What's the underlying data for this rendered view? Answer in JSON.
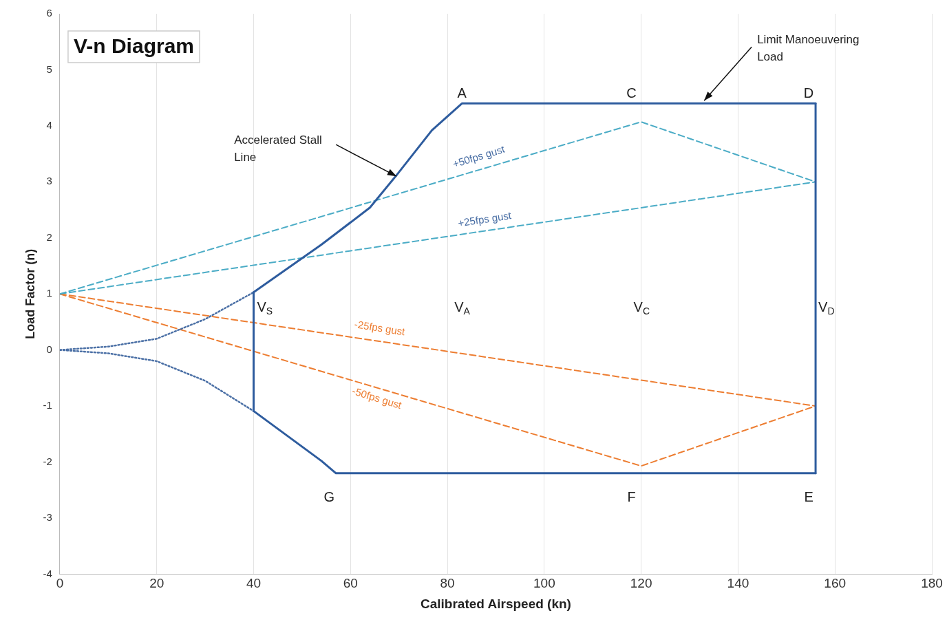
{
  "chart_data": {
    "type": "line",
    "title": "V-n Diagram",
    "xlabel": "Calibrated Airspeed (kn)",
    "ylabel": "Load Factor (n)",
    "xlim": [
      0,
      180
    ],
    "xticks": [
      0,
      20,
      40,
      60,
      80,
      100,
      120,
      140,
      160,
      180
    ],
    "ylim": [
      -4,
      6
    ],
    "yticks": [
      -4,
      -3,
      -2,
      -1,
      0,
      1,
      2,
      3,
      4,
      5,
      6
    ],
    "grid": "x",
    "legend": false,
    "marker": "none",
    "series": [
      {
        "color": "#2e5c9e",
        "line_style": "solid",
        "x": [
          40,
          54,
          64,
          69.7,
          76.8,
          83,
          156
        ],
        "values": [
          1.03,
          1.88,
          2.54,
          3.14,
          3.92,
          4.4,
          4.4
        ]
      },
      {
        "color": "#2e5c9e",
        "line_style": "solid",
        "x": [
          40,
          54,
          57,
          156
        ],
        "values": [
          -1.09,
          -1.98,
          -2.2,
          -2.2
        ]
      },
      {
        "color": "#2e5c9e",
        "line_style": "solid",
        "x": [
          156,
          156
        ],
        "values": [
          4.4,
          -2.2
        ]
      },
      {
        "color": "#2e5c9e",
        "line_style": "solid",
        "x": [
          40,
          40
        ],
        "values": [
          -1.09,
          1.03
        ]
      },
      {
        "color": "#4a6fa5",
        "line_style": "dotted",
        "x": [
          0,
          10,
          20,
          30,
          40
        ],
        "values": [
          0,
          0.06,
          0.2,
          0.55,
          1.03
        ]
      },
      {
        "color": "#4a6fa5",
        "line_style": "dotted",
        "x": [
          0,
          10,
          20,
          30,
          40
        ],
        "values": [
          0,
          -0.06,
          -0.2,
          -0.55,
          -1.09
        ]
      },
      {
        "color": "#4bacc6",
        "line_style": "dashed",
        "x": [
          0,
          120,
          156
        ],
        "values": [
          1,
          4.07,
          3
        ]
      },
      {
        "color": "#4bacc6",
        "line_style": "dashed",
        "x": [
          0,
          156
        ],
        "values": [
          1,
          3
        ]
      },
      {
        "color": "#ed7d31",
        "line_style": "dashed",
        "x": [
          0,
          156
        ],
        "values": [
          1,
          -1
        ]
      },
      {
        "color": "#ed7d31",
        "line_style": "dashed",
        "x": [
          0,
          120,
          156
        ],
        "values": [
          1,
          -2.07,
          -1
        ]
      }
    ],
    "annotations": [
      {
        "text": "A",
        "x": 83,
        "y": 4.4
      },
      "C",
      {
        "text": "D",
        "x": 156,
        "y": 4.4
      },
      {
        "text": "G",
        "x": 57,
        "y": -2.2
      },
      "F",
      {
        "text": "E",
        "x": 156,
        "y": -2.2
      },
      "V$_{S}$",
      "V$_{A}$",
      "V$_{C}$",
      "V$_{D}$",
      "+50fps gust",
      "+25fps gust",
      "-25fps gust",
      "-50fps gust",
      {
        "text": "Accelerated Stall\nLine",
        "x": 69.5,
        "y": 3.1
      },
      "Limit Manoeuvering\nLoad"
    ]
  }
}
